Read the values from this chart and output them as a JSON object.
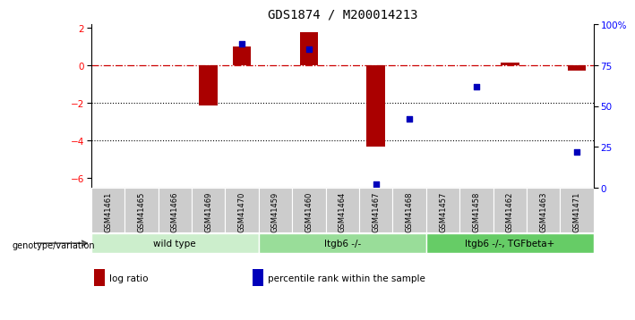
{
  "title": "GDS1874 / M200014213",
  "samples": [
    "GSM41461",
    "GSM41465",
    "GSM41466",
    "GSM41469",
    "GSM41470",
    "GSM41459",
    "GSM41460",
    "GSM41464",
    "GSM41467",
    "GSM41468",
    "GSM41457",
    "GSM41458",
    "GSM41462",
    "GSM41463",
    "GSM41471"
  ],
  "log_ratio": [
    0,
    0,
    0,
    -2.1,
    1.0,
    0,
    1.8,
    0,
    -4.3,
    0,
    0,
    0,
    0.15,
    0,
    -0.25
  ],
  "percentile_rank": [
    null,
    null,
    null,
    null,
    88,
    null,
    85,
    null,
    2,
    42,
    null,
    62,
    null,
    null,
    22
  ],
  "groups": [
    {
      "label": "wild type",
      "start": 0,
      "end": 5,
      "color": "#cceecc"
    },
    {
      "label": "Itgb6 -/-",
      "start": 5,
      "end": 10,
      "color": "#99dd99"
    },
    {
      "label": "Itgb6 -/-, TGFbeta+",
      "start": 10,
      "end": 15,
      "color": "#66cc66"
    }
  ],
  "bar_color": "#aa0000",
  "dot_color": "#0000bb",
  "hline_color": "#cc0000",
  "dotline_color": "#000000",
  "ylim_left": [
    -6.5,
    2.2
  ],
  "ylim_right": [
    0,
    100
  ],
  "yticks_left": [
    -6,
    -4,
    -2,
    0,
    2
  ],
  "yticks_right": [
    0,
    25,
    50,
    75,
    100
  ],
  "right_tick_labels": [
    "0",
    "25",
    "50",
    "75",
    "100%"
  ],
  "legend_items": [
    {
      "color": "#aa0000",
      "label": "log ratio"
    },
    {
      "color": "#0000bb",
      "label": "percentile rank within the sample"
    }
  ],
  "genotype_label": "genotype/variation",
  "sample_bg": "#cccccc"
}
